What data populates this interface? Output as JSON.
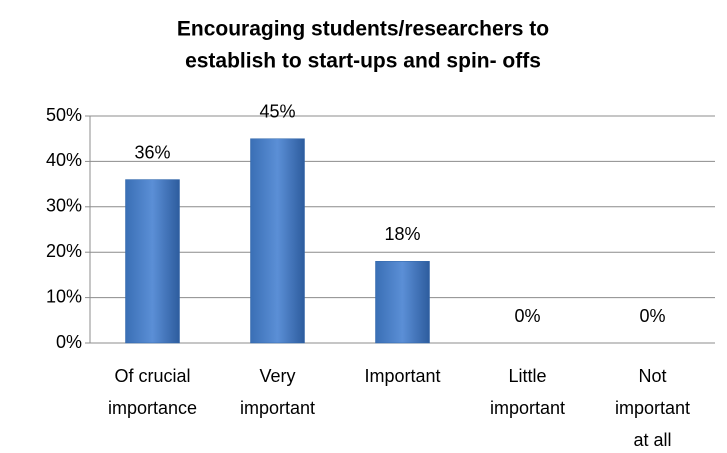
{
  "chart_data": {
    "type": "bar",
    "title": [
      "Encouraging students/researchers to",
      "establish to start-ups and spin- offs"
    ],
    "categories": [
      [
        "Of crucial",
        "importance"
      ],
      [
        "Very",
        "important"
      ],
      [
        "Important"
      ],
      [
        "Little",
        "important"
      ],
      [
        "Not",
        "important",
        "at all"
      ]
    ],
    "values": [
      36,
      45,
      18,
      0,
      0
    ],
    "value_labels": [
      "36%",
      "45%",
      "18%",
      "0%",
      "0%"
    ],
    "color": "#2e64a8",
    "ylim": [
      0,
      50
    ],
    "yticks": [
      {
        "value": 0,
        "label": "0%"
      },
      {
        "value": 10,
        "label": "10%"
      },
      {
        "value": 20,
        "label": "20%"
      },
      {
        "value": 30,
        "label": "30%"
      },
      {
        "value": 40,
        "label": "40%"
      },
      {
        "value": 50,
        "label": "50%"
      }
    ],
    "grid": true
  }
}
